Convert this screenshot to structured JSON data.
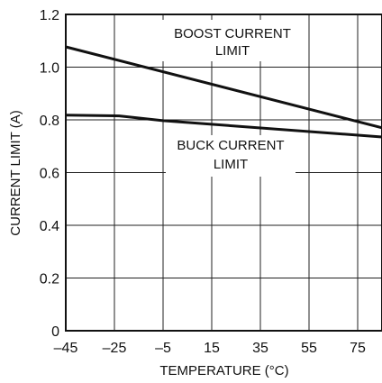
{
  "chart_data": {
    "type": "line",
    "title": "",
    "xlabel": "TEMPERATURE (°C)",
    "ylabel": "CURRENT LIMIT (A)",
    "xlim": [
      -45,
      85
    ],
    "ylim": [
      0,
      1.2
    ],
    "x_ticks": [
      -45,
      -25,
      -5,
      15,
      35,
      55,
      75
    ],
    "x_tick_labels": [
      "–45",
      "–25",
      "–5",
      "15",
      "35",
      "55",
      "75"
    ],
    "y_ticks": [
      0,
      0.2,
      0.4,
      0.6,
      0.8,
      1.0,
      1.2
    ],
    "y_tick_labels": [
      "0",
      "0.2",
      "0.4",
      "0.6",
      "0.8",
      "1.0",
      "1.2"
    ],
    "grid": true,
    "series": [
      {
        "name": "BOOST CURRENT LIMIT",
        "label_lines": [
          "BOOST CURRENT",
          "LIMIT"
        ],
        "x": [
          -45,
          85
        ],
        "y": [
          1.077,
          0.77
        ]
      },
      {
        "name": "BUCK CURRENT LIMIT",
        "label_lines": [
          "BUCK CURRENT",
          "LIMIT"
        ],
        "x": [
          -45,
          -23,
          -5,
          85
        ],
        "y": [
          0.818,
          0.815,
          0.797,
          0.735
        ]
      }
    ],
    "line_color": "#111111",
    "grid_color": "#222222"
  }
}
